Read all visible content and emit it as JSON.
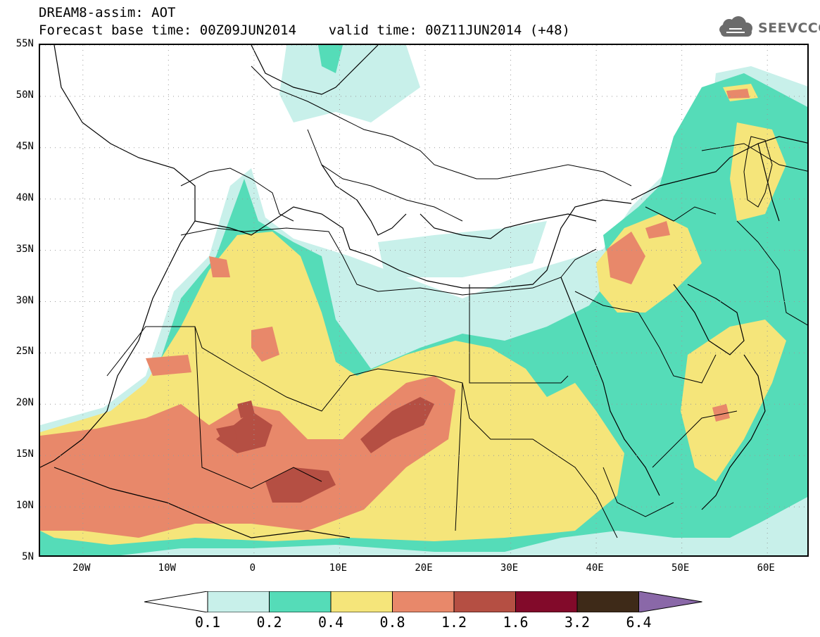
{
  "header": {
    "line1": "DREAM8-assim: AOT",
    "line2": "Forecast base time: 00Z09JUN2014    valid time: 00Z11JUN2014 (+48)"
  },
  "logo": {
    "text": "SEEVCCC",
    "icon": "cloud-icon"
  },
  "map": {
    "lon_range": [
      -25,
      65
    ],
    "lat_range": [
      5,
      55
    ],
    "lat_labels": [
      "55N",
      "50N",
      "45N",
      "40N",
      "35N",
      "30N",
      "25N",
      "20N",
      "15N",
      "10N",
      "5N"
    ],
    "lat_values": [
      55,
      50,
      45,
      40,
      35,
      30,
      25,
      20,
      15,
      10,
      5
    ],
    "lon_labels": [
      "20W",
      "10W",
      "0",
      "10E",
      "20E",
      "30E",
      "40E",
      "50E",
      "60E"
    ],
    "lon_values": [
      -20,
      -10,
      0,
      10,
      20,
      30,
      40,
      50,
      60
    ]
  },
  "colorbar": {
    "levels": [
      "0.1",
      "0.2",
      "0.4",
      "0.8",
      "1.2",
      "1.6",
      "3.2",
      "6.4"
    ],
    "colors": [
      "#ffffff",
      "#c8f0ea",
      "#55dcb8",
      "#f5e57a",
      "#e8886a",
      "#b54f43",
      "#820a2a",
      "#3e2a18",
      "#8a68a8"
    ]
  }
}
